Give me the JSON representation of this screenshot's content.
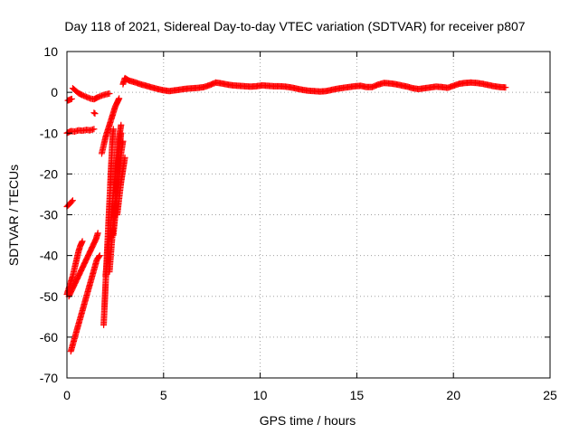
{
  "chart_data": {
    "type": "scatter",
    "title": "Day 118 of 2021, Sidereal Day-to-day VTEC variation (SDTVAR) for receiver p807",
    "xlabel": "GPS time / hours",
    "ylabel": "SDTVAR / TECUs",
    "xlim": [
      0,
      25
    ],
    "ylim": [
      -70,
      10
    ],
    "x_ticks": [
      0,
      5,
      10,
      15,
      20,
      25
    ],
    "y_ticks": [
      -70,
      -60,
      -50,
      -40,
      -30,
      -20,
      -10,
      0,
      10
    ],
    "grid": true,
    "grid_style": "dotted",
    "marker": "+",
    "series": [
      {
        "name": "SDTVAR",
        "color": "#ff0000",
        "segments": [
          {
            "points": [
              [
                0.05,
                -2.0
              ],
              [
                0.15,
                -1.8
              ],
              [
                0.25,
                -1.6
              ]
            ]
          },
          {
            "points": [
              [
                0.3,
                1.0
              ],
              [
                0.45,
                0.4
              ],
              [
                0.6,
                -0.2
              ],
              [
                0.8,
                -0.7
              ],
              [
                1.0,
                -1.1
              ],
              [
                1.2,
                -1.5
              ],
              [
                1.4,
                -1.7
              ],
              [
                1.6,
                -1.2
              ],
              [
                1.8,
                -0.8
              ],
              [
                2.0,
                -0.5
              ],
              [
                2.2,
                -0.3
              ]
            ]
          },
          {
            "points": [
              [
                0.0,
                -10.0
              ],
              [
                0.2,
                -9.5
              ],
              [
                0.4,
                -9.6
              ],
              [
                0.6,
                -9.3
              ],
              [
                0.8,
                -9.4
              ],
              [
                1.0,
                -9.2
              ],
              [
                1.2,
                -9.3
              ],
              [
                1.4,
                -9.0
              ]
            ]
          },
          {
            "points": [
              [
                1.4,
                -5.0
              ],
              [
                1.45,
                -5.2
              ]
            ]
          },
          {
            "points": [
              [
                0.0,
                -28.0
              ],
              [
                0.1,
                -27.5
              ],
              [
                0.2,
                -27.0
              ],
              [
                0.3,
                -26.5
              ]
            ]
          },
          {
            "points": [
              [
                0.0,
                -49.5
              ],
              [
                0.1,
                -48.0
              ],
              [
                0.2,
                -46.5
              ],
              [
                0.3,
                -45.0
              ],
              [
                0.4,
                -43.0
              ],
              [
                0.5,
                -41.0
              ],
              [
                0.6,
                -39.0
              ],
              [
                0.7,
                -37.5
              ],
              [
                0.8,
                -36.5
              ]
            ]
          },
          {
            "points": [
              [
                0.1,
                -50.0
              ],
              [
                0.3,
                -48.0
              ],
              [
                0.5,
                -46.0
              ],
              [
                0.7,
                -44.0
              ],
              [
                0.9,
                -42.0
              ],
              [
                1.1,
                -40.0
              ],
              [
                1.3,
                -38.0
              ],
              [
                1.5,
                -36.0
              ],
              [
                1.6,
                -34.5
              ]
            ]
          },
          {
            "points": [
              [
                0.2,
                -63.5
              ],
              [
                0.35,
                -61.0
              ],
              [
                0.5,
                -58.5
              ],
              [
                0.65,
                -56.0
              ],
              [
                0.8,
                -53.5
              ],
              [
                0.95,
                -51.0
              ],
              [
                1.1,
                -48.5
              ],
              [
                1.25,
                -46.0
              ],
              [
                1.4,
                -43.5
              ],
              [
                1.55,
                -41.0
              ],
              [
                1.7,
                -40.0
              ]
            ]
          },
          {
            "points": [
              [
                1.9,
                -57.0
              ],
              [
                1.95,
                -52.0
              ],
              [
                2.0,
                -47.0
              ],
              [
                2.05,
                -42.0
              ],
              [
                2.1,
                -37.0
              ],
              [
                2.15,
                -32.0
              ],
              [
                2.2,
                -27.0
              ],
              [
                2.25,
                -22.0
              ],
              [
                2.3,
                -17.0
              ],
              [
                2.35,
                -12.0
              ],
              [
                2.4,
                -9.0
              ]
            ]
          },
          {
            "points": [
              [
                1.8,
                -15.0
              ],
              [
                1.9,
                -13.0
              ],
              [
                2.0,
                -11.0
              ],
              [
                2.1,
                -9.5
              ],
              [
                2.2,
                -8.0
              ],
              [
                2.3,
                -6.5
              ],
              [
                2.4,
                -5.0
              ],
              [
                2.5,
                -3.5
              ],
              [
                2.6,
                -2.5
              ],
              [
                2.7,
                -1.5
              ]
            ]
          },
          {
            "points": [
              [
                2.0,
                -45.0
              ],
              [
                2.1,
                -40.0
              ],
              [
                2.2,
                -35.0
              ],
              [
                2.3,
                -30.0
              ],
              [
                2.4,
                -25.0
              ],
              [
                2.5,
                -20.0
              ],
              [
                2.6,
                -15.0
              ],
              [
                2.7,
                -11.0
              ],
              [
                2.8,
                -8.0
              ]
            ]
          },
          {
            "points": [
              [
                2.2,
                -44.0
              ],
              [
                2.3,
                -38.0
              ],
              [
                2.4,
                -32.0
              ],
              [
                2.5,
                -26.0
              ],
              [
                2.6,
                -20.0
              ],
              [
                2.7,
                -14.0
              ],
              [
                2.8,
                -10.0
              ]
            ]
          },
          {
            "points": [
              [
                2.4,
                -35.0
              ],
              [
                2.5,
                -30.0
              ],
              [
                2.6,
                -25.0
              ],
              [
                2.7,
                -20.0
              ],
              [
                2.8,
                -15.0
              ],
              [
                2.9,
                -12.0
              ]
            ]
          },
          {
            "points": [
              [
                2.6,
                -30.0
              ],
              [
                2.7,
                -26.0
              ],
              [
                2.8,
                -22.0
              ],
              [
                2.9,
                -19.0
              ],
              [
                3.0,
                -16.0
              ]
            ]
          },
          {
            "points": [
              [
                2.9,
                2.0
              ],
              [
                3.0,
                3.5
              ],
              [
                3.2,
                2.9
              ],
              [
                3.5,
                2.5
              ],
              [
                3.8,
                2.0
              ],
              [
                4.1,
                1.6
              ],
              [
                4.4,
                1.2
              ],
              [
                4.7,
                0.8
              ],
              [
                5.0,
                0.5
              ],
              [
                5.3,
                0.3
              ],
              [
                5.6,
                0.5
              ],
              [
                5.9,
                0.7
              ],
              [
                6.2,
                0.9
              ],
              [
                6.5,
                1.0
              ],
              [
                6.8,
                1.1
              ],
              [
                7.1,
                1.3
              ],
              [
                7.4,
                1.8
              ],
              [
                7.7,
                2.4
              ],
              [
                8.0,
                2.2
              ],
              [
                8.3,
                1.9
              ],
              [
                8.6,
                1.7
              ],
              [
                8.9,
                1.6
              ],
              [
                9.2,
                1.5
              ],
              [
                9.5,
                1.4
              ],
              [
                9.8,
                1.5
              ],
              [
                10.1,
                1.7
              ],
              [
                10.4,
                1.6
              ],
              [
                10.7,
                1.5
              ],
              [
                11.0,
                1.5
              ],
              [
                11.3,
                1.4
              ],
              [
                11.6,
                1.2
              ],
              [
                11.9,
                0.9
              ],
              [
                12.2,
                0.6
              ],
              [
                12.5,
                0.4
              ],
              [
                12.8,
                0.3
              ],
              [
                13.1,
                0.2
              ],
              [
                13.4,
                0.3
              ],
              [
                13.7,
                0.6
              ],
              [
                14.0,
                0.9
              ],
              [
                14.3,
                1.1
              ],
              [
                14.6,
                1.3
              ],
              [
                14.9,
                1.5
              ],
              [
                15.2,
                1.6
              ],
              [
                15.5,
                1.3
              ],
              [
                15.8,
                1.3
              ],
              [
                16.1,
                1.9
              ],
              [
                16.4,
                2.3
              ],
              [
                16.7,
                2.2
              ],
              [
                17.0,
                2.0
              ],
              [
                17.3,
                1.7
              ],
              [
                17.6,
                1.4
              ],
              [
                17.9,
                1.0
              ],
              [
                18.2,
                0.8
              ],
              [
                18.5,
                1.0
              ],
              [
                18.8,
                1.2
              ],
              [
                19.1,
                1.4
              ],
              [
                19.4,
                1.3
              ],
              [
                19.7,
                1.1
              ],
              [
                20.0,
                1.6
              ],
              [
                20.3,
                2.1
              ],
              [
                20.6,
                2.3
              ],
              [
                20.9,
                2.4
              ],
              [
                21.2,
                2.3
              ],
              [
                21.5,
                2.1
              ],
              [
                21.8,
                1.8
              ],
              [
                22.1,
                1.5
              ],
              [
                22.4,
                1.3
              ],
              [
                22.7,
                1.2
              ]
            ]
          }
        ]
      }
    ]
  }
}
